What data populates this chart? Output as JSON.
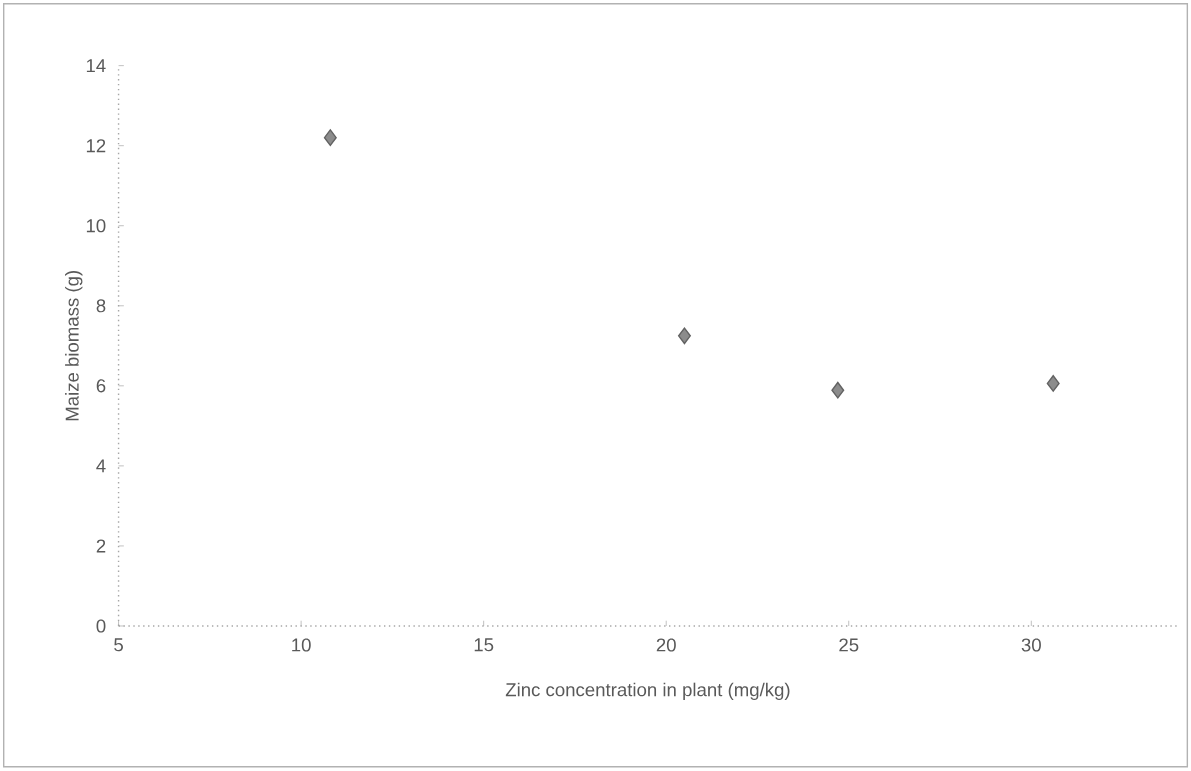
{
  "chart_data": {
    "type": "scatter",
    "xlabel": "Zinc concentration in plant (mg/kg)",
    "ylabel": "Maize biomass (g)",
    "x": [
      10.8,
      20.5,
      24.7,
      30.6
    ],
    "values": [
      12.2,
      7.25,
      5.89,
      6.06
    ],
    "color": "#8c8c8c",
    "marker": "diamond",
    "xlim": [
      5,
      34
    ],
    "xticks": [
      5,
      10,
      15,
      20,
      25,
      30
    ],
    "ylim": [
      0,
      14
    ],
    "yticks": [
      0,
      2,
      4,
      6,
      8,
      10,
      12,
      14
    ]
  }
}
